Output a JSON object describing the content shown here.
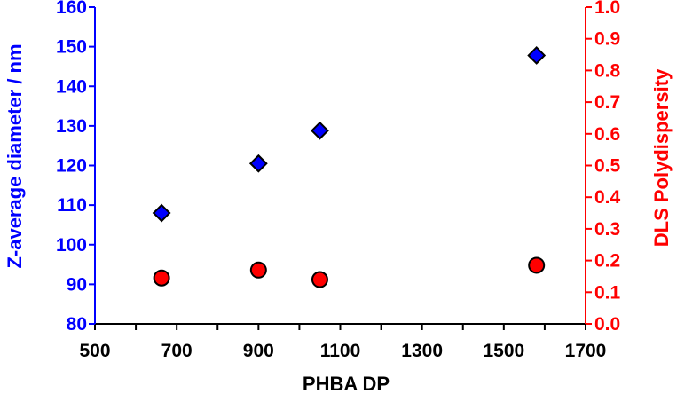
{
  "chart_data": {
    "type": "scatter",
    "title": "",
    "xlabel": "PHBA DP",
    "ylabel_left": "Z-average diameter / nm",
    "ylabel_right": "DLS Polydispersity",
    "xlim": [
      500,
      1700
    ],
    "ylim_left": [
      80,
      160
    ],
    "ylim_right": [
      0.0,
      1.0
    ],
    "x_ticks": [
      "500",
      "700",
      "900",
      "1100",
      "1300",
      "1500",
      "1700"
    ],
    "y_left_ticks": [
      "80",
      "90",
      "100",
      "110",
      "120",
      "130",
      "140",
      "150",
      "160"
    ],
    "y_right_ticks": [
      "0.0",
      "0.1",
      "0.2",
      "0.3",
      "0.4",
      "0.5",
      "0.6",
      "0.7",
      "0.8",
      "0.9",
      "1.0"
    ],
    "grid": false,
    "legend": "none",
    "series": [
      {
        "axis": "left",
        "marker": "diamond",
        "color": "#0000ff",
        "points": [
          {
            "x": 663,
            "y": 108
          },
          {
            "x": 900,
            "y": 120.5
          },
          {
            "x": 1050,
            "y": 128.8
          },
          {
            "x": 1580,
            "y": 147.8
          }
        ]
      },
      {
        "axis": "right",
        "marker": "circle",
        "color": "#ff0000",
        "points": [
          {
            "x": 663,
            "y": 0.145
          },
          {
            "x": 900,
            "y": 0.17
          },
          {
            "x": 1050,
            "y": 0.14
          },
          {
            "x": 1580,
            "y": 0.185
          }
        ]
      }
    ],
    "colors": {
      "left_axis": "#0000ff",
      "right_axis": "#ff0000",
      "x_axis": "#000000"
    }
  }
}
